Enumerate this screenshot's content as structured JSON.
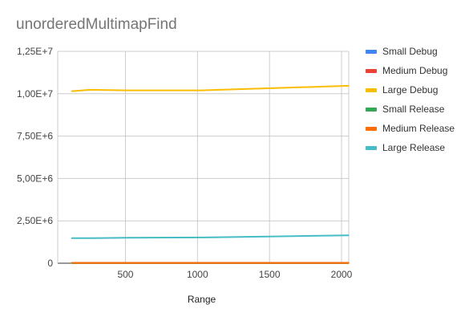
{
  "chart_data": {
    "type": "line",
    "title": "unorderedMultimapFind",
    "xlabel": "Range",
    "ylabel": "",
    "xlim": [
      30,
      2050
    ],
    "ylim": [
      0,
      12500000
    ],
    "x_ticks": [
      500,
      1000,
      1500,
      2000
    ],
    "x_tick_labels": [
      "500",
      "1000",
      "1500",
      "2000"
    ],
    "y_ticks": [
      0,
      2500000,
      5000000,
      7500000,
      10000000,
      12500000
    ],
    "y_tick_labels": [
      "0",
      "2,50E+6",
      "5,00E+6",
      "7,50E+6",
      "1,00E+7",
      "1,25E+7"
    ],
    "grid": true,
    "legend_position": "right",
    "x": [
      128,
      256,
      512,
      1024,
      1536,
      2048
    ],
    "series": [
      {
        "name": "Small Debug",
        "color": "#4285F4",
        "values": [
          9000,
          9000,
          9000,
          9000,
          9000,
          9000
        ]
      },
      {
        "name": "Medium Debug",
        "color": "#EA4335",
        "values": [
          25000,
          25000,
          25000,
          25000,
          25000,
          25000
        ]
      },
      {
        "name": "Large Debug",
        "color": "#FBBC04",
        "values": [
          10150000,
          10230000,
          10200000,
          10200000,
          10330000,
          10470000
        ]
      },
      {
        "name": "Small Release",
        "color": "#34A853",
        "values": [
          4000,
          4000,
          4000,
          4000,
          4000,
          4000
        ]
      },
      {
        "name": "Medium Release",
        "color": "#FF6D01",
        "values": [
          12000,
          12000,
          12000,
          12000,
          12000,
          12000
        ]
      },
      {
        "name": "Large Release",
        "color": "#46BDC6",
        "values": [
          1480000,
          1480000,
          1500000,
          1520000,
          1580000,
          1650000
        ]
      }
    ]
  }
}
